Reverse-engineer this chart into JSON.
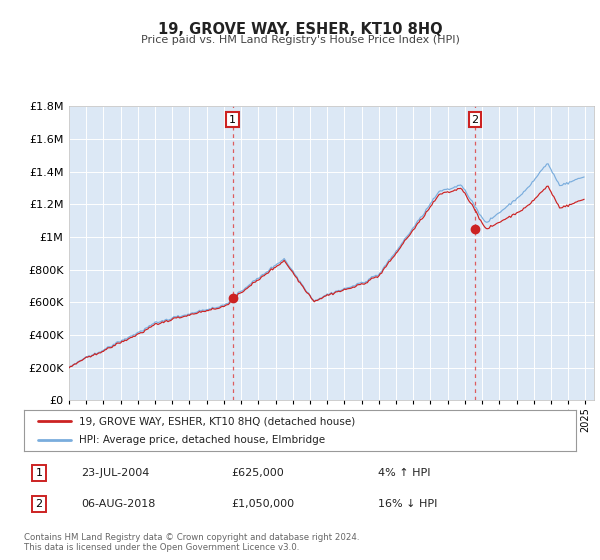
{
  "title": "19, GROVE WAY, ESHER, KT10 8HQ",
  "subtitle": "Price paid vs. HM Land Registry's House Price Index (HPI)",
  "sale1_date": "23-JUL-2004",
  "sale1_price": 625000,
  "sale1_price_str": "£625,000",
  "sale1_pct": "4%",
  "sale1_direction": "↑",
  "sale2_date": "06-AUG-2018",
  "sale2_price": 1050000,
  "sale2_price_str": "£1,050,000",
  "sale2_pct": "16%",
  "sale2_direction": "↓",
  "legend_red": "19, GROVE WAY, ESHER, KT10 8HQ (detached house)",
  "legend_blue": "HPI: Average price, detached house, Elmbridge",
  "footnote1": "Contains HM Land Registry data © Crown copyright and database right 2024.",
  "footnote2": "This data is licensed under the Open Government Licence v3.0.",
  "fig_bg": "#ffffff",
  "plot_bg": "#dce8f5",
  "grid_color": "#ffffff",
  "red_color": "#cc2222",
  "blue_color": "#7aaddd",
  "sale_dot_color": "#cc2222",
  "vline_color": "#dd4444",
  "label_box_edge": "#cc2222",
  "ylim_max": 1800000,
  "ylim_min": 0,
  "start_year": 1995,
  "end_year": 2025
}
